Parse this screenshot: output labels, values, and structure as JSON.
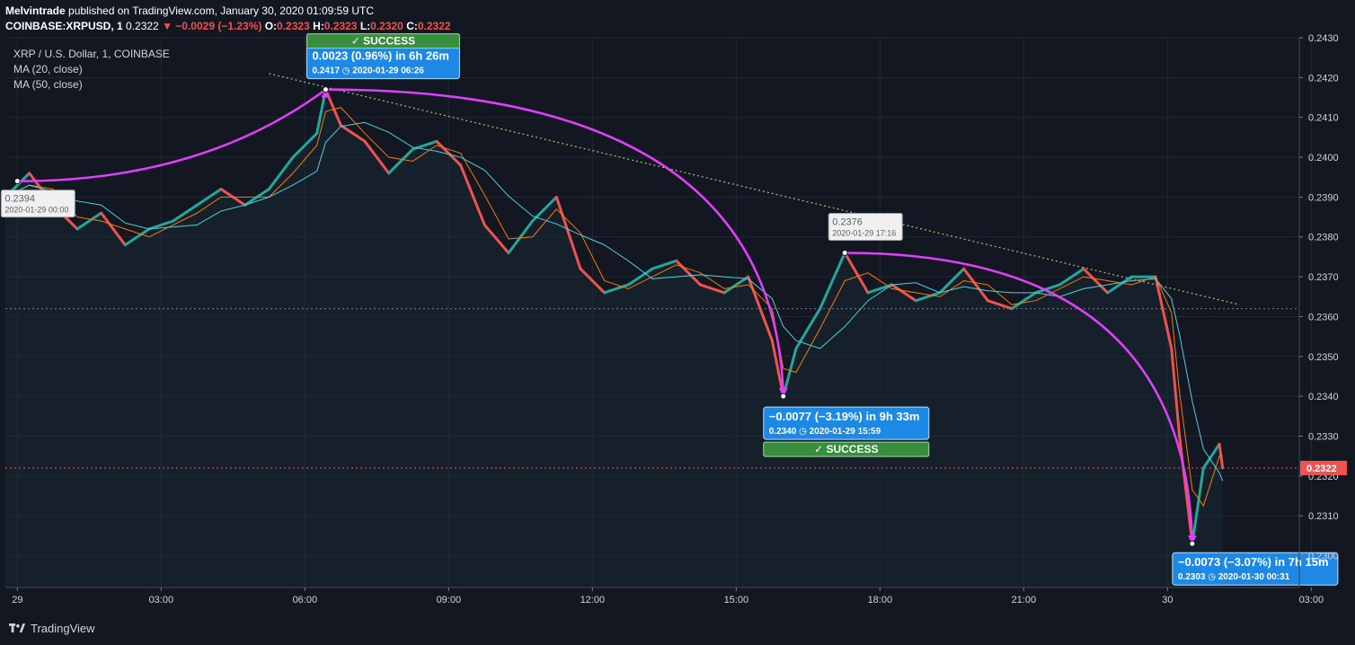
{
  "header": {
    "publisher": "Melvintrade",
    "published_text": "published on TradingView.com, January 30, 2020 01:09:59 UTC",
    "symbol_line": "COINBASE:XRPUSD, 1",
    "last": "0.2322",
    "change": "▼ −0.0029 (−1.23%)",
    "o_label": "O:",
    "o_value": "0.2323",
    "h_label": "H:",
    "h_value": "0.2323",
    "l_label": "L:",
    "l_value": "0.2320",
    "c_label": "C:",
    "c_value": "0.2322"
  },
  "legend": {
    "title": "XRP / U.S. Dollar, 1, COINBASE",
    "ma20": "MA (20, close)",
    "ma50": "MA (50, close)"
  },
  "footer": {
    "brand": "TradingView"
  },
  "colors": {
    "background": "#131722",
    "up": "#26a69a",
    "down": "#ef5350",
    "ma20": "#f57c00",
    "ma50": "#4dd0e1",
    "arc": "#e040fb",
    "badge_blue": "#1e88e5",
    "success_green": "#388e3c"
  },
  "chart_data": {
    "type": "line",
    "symbol": "COINBASE:XRPUSD",
    "interval": "1",
    "x_label": "",
    "y_label": "",
    "x_range": [
      "2020-01-28 23:45",
      "2020-01-30 02:45"
    ],
    "ylim": [
      0.2292,
      0.243
    ],
    "price_scale_ticks": [
      "0.2430",
      "0.2420",
      "0.2410",
      "0.2400",
      "0.2390",
      "0.2380",
      "0.2370",
      "0.2360",
      "0.2350",
      "0.2340",
      "0.2330",
      "0.2320",
      "0.2310",
      "0.2300"
    ],
    "time_ticks": [
      {
        "label": "29",
        "t": "2020-01-29 00:00"
      },
      {
        "label": "03:00",
        "t": "2020-01-29 03:00"
      },
      {
        "label": "06:00",
        "t": "2020-01-29 06:00"
      },
      {
        "label": "09:00",
        "t": "2020-01-29 09:00"
      },
      {
        "label": "12:00",
        "t": "2020-01-29 12:00"
      },
      {
        "label": "15:00",
        "t": "2020-01-29 15:00"
      },
      {
        "label": "18:00",
        "t": "2020-01-29 18:00"
      },
      {
        "label": "21:00",
        "t": "2020-01-29 21:00"
      },
      {
        "label": "30",
        "t": "2020-01-30 00:00"
      },
      {
        "label": "03:00",
        "t": "2020-01-30 03:00"
      }
    ],
    "grid": true,
    "series": [
      {
        "name": "XRP / U.S. Dollar",
        "x": [
          "2020-01-28 23:45",
          "2020-01-29 00:15",
          "2020-01-29 00:45",
          "2020-01-29 01:15",
          "2020-01-29 01:45",
          "2020-01-29 02:15",
          "2020-01-29 02:45",
          "2020-01-29 03:15",
          "2020-01-29 03:45",
          "2020-01-29 04:15",
          "2020-01-29 04:45",
          "2020-01-29 05:15",
          "2020-01-29 05:45",
          "2020-01-29 06:15",
          "2020-01-29 06:26",
          "2020-01-29 06:45",
          "2020-01-29 07:15",
          "2020-01-29 07:45",
          "2020-01-29 08:15",
          "2020-01-29 08:45",
          "2020-01-29 09:15",
          "2020-01-29 09:45",
          "2020-01-29 10:15",
          "2020-01-29 10:45",
          "2020-01-29 11:15",
          "2020-01-29 11:45",
          "2020-01-29 12:15",
          "2020-01-29 12:45",
          "2020-01-29 13:15",
          "2020-01-29 13:45",
          "2020-01-29 14:15",
          "2020-01-29 14:45",
          "2020-01-29 15:15",
          "2020-01-29 15:45",
          "2020-01-29 15:59",
          "2020-01-29 16:15",
          "2020-01-29 16:45",
          "2020-01-29 17:16",
          "2020-01-29 17:45",
          "2020-01-29 18:15",
          "2020-01-29 18:45",
          "2020-01-29 19:15",
          "2020-01-29 19:45",
          "2020-01-29 20:15",
          "2020-01-29 20:45",
          "2020-01-29 21:15",
          "2020-01-29 21:45",
          "2020-01-29 22:15",
          "2020-01-29 22:45",
          "2020-01-29 23:15",
          "2020-01-29 23:45",
          "2020-01-30 00:05",
          "2020-01-30 00:15",
          "2020-01-30 00:31",
          "2020-01-30 00:45",
          "2020-01-30 01:05",
          "2020-01-30 01:09"
        ],
        "values": [
          0.239,
          0.2396,
          0.2388,
          0.2382,
          0.2386,
          0.2378,
          0.2382,
          0.2384,
          0.2388,
          0.2392,
          0.2388,
          0.2392,
          0.24,
          0.2406,
          0.2417,
          0.2408,
          0.2404,
          0.2396,
          0.2402,
          0.2404,
          0.2398,
          0.2383,
          0.2376,
          0.2384,
          0.239,
          0.2372,
          0.2366,
          0.2368,
          0.2372,
          0.2374,
          0.2368,
          0.2366,
          0.237,
          0.2354,
          0.234,
          0.2352,
          0.2362,
          0.2376,
          0.2366,
          0.2368,
          0.2364,
          0.2366,
          0.2372,
          0.2364,
          0.2362,
          0.2366,
          0.2368,
          0.2372,
          0.2366,
          0.237,
          0.237,
          0.2352,
          0.233,
          0.2303,
          0.2322,
          0.2328,
          0.2322
        ]
      },
      {
        "name": "MA (20, close)",
        "values_smoothed_from_price": true
      },
      {
        "name": "MA (50, close)",
        "values_smoothed_from_price": true
      }
    ],
    "horizontal_lines": [
      0.2362,
      0.2322
    ],
    "trend_line": {
      "from": {
        "t": "2020-01-29 05:15",
        "y": 0.2421
      },
      "to": {
        "t": "2020-01-30 01:30",
        "y": 0.2363
      }
    },
    "last_price_label": "0.2322",
    "point_labels": [
      {
        "price": "0.2394",
        "time": "2020-01-29 00:00",
        "t": "2020-01-29 00:00",
        "y": 0.2394
      },
      {
        "price": "0.2376",
        "time": "2020-01-29 17:16",
        "t": "2020-01-29 17:16",
        "y": 0.2376
      }
    ],
    "measurements": [
      {
        "text": "0.0023 (0.96%) in 6h 26m",
        "price": "0.2417",
        "time": "2020-01-29  06:26",
        "t": "2020-01-29 06:26",
        "y": 0.2417,
        "status": "✓ SUCCESS"
      },
      {
        "text": "−0.0077 (−3.19%) in 9h 33m",
        "price": "0.2340",
        "time": "2020-01-29  15:59",
        "t": "2020-01-29 15:59",
        "y": 0.234,
        "status": "✓ SUCCESS"
      },
      {
        "text": "−0.0073 (−3.07%) in 7h 15m",
        "price": "0.2303",
        "time": "2020-01-30  00:31",
        "t": "2020-01-30 00:31",
        "y": 0.2303,
        "status": ""
      }
    ],
    "arcs": [
      {
        "from": {
          "t": "2020-01-29 00:00",
          "y": 0.2394
        },
        "to": {
          "t": "2020-01-29 06:26",
          "y": 0.2417
        }
      },
      {
        "from": {
          "t": "2020-01-29 06:26",
          "y": 0.2417
        },
        "to": {
          "t": "2020-01-29 15:59",
          "y": 0.234
        }
      },
      {
        "from": {
          "t": "2020-01-29 17:16",
          "y": 0.2376
        },
        "to": {
          "t": "2020-01-30 00:31",
          "y": 0.2303
        }
      }
    ]
  }
}
